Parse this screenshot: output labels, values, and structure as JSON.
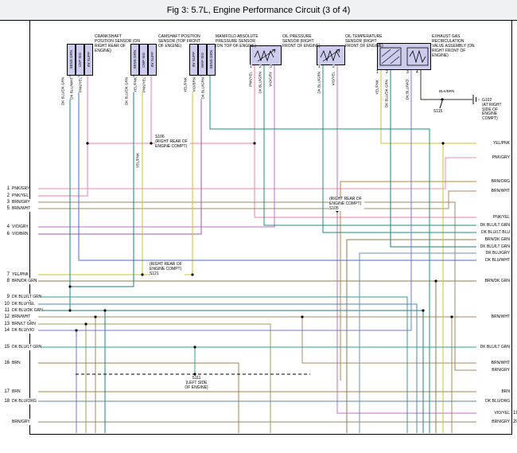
{
  "title": "Fig 3: 5.7L, Engine Performance Circuit (3 of 4)",
  "connectors": [
    {
      "name": "CRANKSHAFT POSITION SENSOR (ON RIGHT REAR OF ENGINE)",
      "pins": [
        "SENS GRN",
        "CKP SIG",
        "8V SUPP"
      ],
      "wires": [
        "DK BLU/DK GRN",
        "DK BLU/WHT",
        "PNK/YEL"
      ]
    },
    {
      "name": "CAMSHAFT POSITION SENSOR (TOP FRONT OF ENGINE)",
      "pins": [
        "SENS GRN",
        "CMP SIG",
        "8V SUPP"
      ],
      "wires": [
        "DK BLU/DK GRN",
        "YEL/PNK",
        "PNK/YEL"
      ]
    },
    {
      "name": "MANIFOLD ABSOLUTE PRESSURE SENSOR (ON TOP OF ENGINE)",
      "pins": [
        "8V SUPP",
        "MAP SIG",
        "SENS GRN"
      ],
      "wires": [
        "YEL/PNK",
        "VIO/BRN",
        "DK BLU/GRN"
      ]
    },
    {
      "name": "OIL PRESSURE SENSOR (RIGHT FRONT OF ENGINE)",
      "pins": [
        "1",
        "2",
        "3"
      ],
      "wires": [
        "PNK/YEL",
        "DK BLU/GRN",
        "VIO/GRY"
      ]
    },
    {
      "name": "OIL TEMPERATURE SENSOR (RIGHT FRONT OF ENGINE)",
      "pins": [
        "1",
        "2"
      ],
      "wires": [
        "DK BLU/GRN",
        "VIO/YEL"
      ]
    },
    {
      "name": "EXHAUST GAS RECIRCULATION VALVE ASSEMBLY (ON RIGHT FRONT OF ENGINE)",
      "pins": [
        "1",
        "2",
        "3",
        "4"
      ],
      "wires": [
        "YEL/PNK",
        "DK BLU/DK GRN",
        "DK BLU/VIO",
        "BLK/BRN"
      ]
    }
  ],
  "left_rows": [
    {
      "n": "1",
      "label": "PNK/GRY"
    },
    {
      "n": "2",
      "label": "PNK/YEL"
    },
    {
      "n": "3",
      "label": "BRN/GRY"
    },
    {
      "n": "5",
      "label": "BRN/WHT"
    },
    {
      "n": "4",
      "label": "VIO/GRY"
    },
    {
      "n": "6",
      "label": "VIO/BRN"
    },
    {
      "n": "7",
      "label": "YEL/PNK"
    },
    {
      "n": "8",
      "label": "BRN/DK GRN"
    },
    {
      "n": "9",
      "label": "DK BLU/LT GRN"
    },
    {
      "n": "10",
      "label": "DK BLU/YEL"
    },
    {
      "n": "11",
      "label": "DK BLU/DK GRN"
    },
    {
      "n": "12",
      "label": "BRN/WHT"
    },
    {
      "n": "13",
      "label": "BRN/LT GRN"
    },
    {
      "n": "14",
      "label": "DK BLU/VIO"
    },
    {
      "n": "15",
      "label": "DK BLU/LT GRN"
    },
    {
      "n": "16",
      "label": "BRN"
    },
    {
      "n": "17",
      "label": "BRN"
    },
    {
      "n": "18",
      "label": "DK BLU/ORG"
    },
    {
      "n": "",
      "label": "BRN/GRY"
    }
  ],
  "right_rows": [
    {
      "n": "",
      "label": "YEL/PNK"
    },
    {
      "n": "",
      "label": "PNK/GRY"
    },
    {
      "n": "",
      "label": "BRN/ORG"
    },
    {
      "n": "",
      "label": "BRN/WHT"
    },
    {
      "n": "",
      "label": "PNK/YEL"
    },
    {
      "n": "",
      "label": "DK BLU/LT GRN"
    },
    {
      "n": "",
      "label": "DK BLU/LT BLU"
    },
    {
      "n": "",
      "label": "BRN/DK GRN"
    },
    {
      "n": "",
      "label": "DK BLU/LT GRN"
    },
    {
      "n": "",
      "label": "DK BLU/GRY"
    },
    {
      "n": "",
      "label": "DK BLU/WHT"
    },
    {
      "n": "",
      "label": "BRN/DK GRN"
    },
    {
      "n": "",
      "label": "BRN/WHT"
    },
    {
      "n": "",
      "label": "DK BLU/LT GRN"
    },
    {
      "n": "",
      "label": "BRN/WHT"
    },
    {
      "n": "",
      "label": "BRN/GRY"
    },
    {
      "n": "",
      "label": "BRN"
    },
    {
      "n": "",
      "label": "DK BLU/ORG"
    },
    {
      "n": "19",
      "label": "VIO/YEL"
    },
    {
      "n": "20",
      "label": "BRN/GRY"
    }
  ],
  "splices": {
    "s106": {
      "name": "S106",
      "note": "(RIGHT REAR OF ENGINE COMPT)"
    },
    "s121": {
      "name": "S121",
      "note": "(RIGHT REAR OF ENGINE COMPT)"
    },
    "s105": {
      "name": "S105",
      "note": "(RIGHT REAR OF ENGINE COMPT)"
    },
    "s111": {
      "name": "S111",
      "note": "(LEFT SIDE OF ENGINE)"
    },
    "s115": {
      "name": "S115"
    },
    "g102": {
      "name": "G102",
      "note": "(AT RIGHT SIDE OF ENGINE COMPT)",
      "wire": "BLK/BRN"
    }
  },
  "colors": {
    "PNK/GRY": "#ec8fb4",
    "PNK/YEL": "#f07ca8",
    "BRN/GRY": "#9f8a6a",
    "BRN/WHT": "#ab8b5d",
    "BRN": "#a37f4e",
    "BRN/ORG": "#b58a3e",
    "BRN/DK GRN": "#8c7d46",
    "BRN/LT GRN": "#97a052",
    "VIO/GRY": "#bc6cc8",
    "VIO/BRN": "#a756ae",
    "VIO/YEL": "#c46cc8",
    "YEL/PNK": "#d2c32a",
    "DK BLU/DK GRN": "#1e8080",
    "DK BLU/GRN": "#1e8f7a",
    "DK BLU/LT GRN": "#2fa092",
    "DK BLU/LT BLU": "#3f9fd0",
    "DK BLU/WHT": "#4a6fca",
    "DK BLU/YEL": "#4a87c0",
    "DK BLU/GRY": "#6f92b4",
    "DK BLU/VIO": "#7a74cc",
    "DK BLU/ORG": "#5a85b8",
    "BLK/BRN": "#332e28",
    "connector_box": "#ccccee"
  }
}
